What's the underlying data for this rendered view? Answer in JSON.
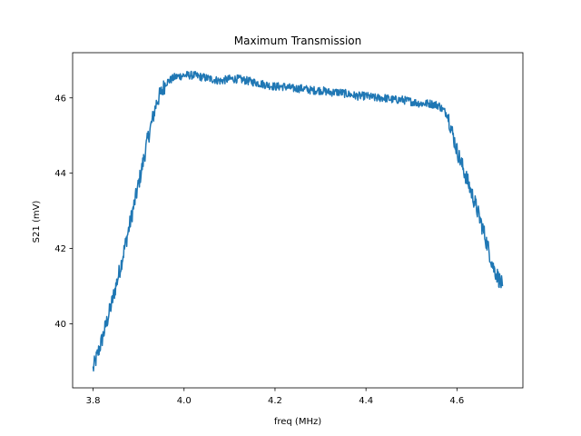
{
  "chart_data": {
    "type": "line",
    "title": "Maximum Transmission",
    "xlabel": "freq (MHz)",
    "ylabel": "S21 (mV)",
    "xlim": [
      3.755,
      4.745
    ],
    "ylim": [
      38.3,
      47.2
    ],
    "xticks": [
      3.8,
      4.0,
      4.2,
      4.4,
      4.6
    ],
    "xtick_labels": [
      "3.8",
      "4.0",
      "4.2",
      "4.4",
      "4.6"
    ],
    "yticks": [
      40,
      42,
      44,
      46
    ],
    "ytick_labels": [
      "40",
      "42",
      "44",
      "46"
    ],
    "grid": false,
    "legend": "none",
    "color": "#1f77b4",
    "series": [
      {
        "x": [
          3.8,
          3.82,
          3.84,
          3.86,
          3.88,
          3.9,
          3.92,
          3.94,
          3.96,
          3.98,
          4.0,
          4.02,
          4.04,
          4.06,
          4.08,
          4.1,
          4.12,
          4.14,
          4.16,
          4.18,
          4.2,
          4.22,
          4.24,
          4.26,
          4.28,
          4.3,
          4.32,
          4.34,
          4.36,
          4.38,
          4.4,
          4.42,
          4.44,
          4.46,
          4.48,
          4.5,
          4.52,
          4.54,
          4.56,
          4.58,
          4.6,
          4.62,
          4.64,
          4.66,
          4.68,
          4.7
        ],
        "y": [
          38.8,
          39.6,
          40.5,
          41.5,
          42.6,
          43.7,
          44.9,
          45.9,
          46.4,
          46.55,
          46.6,
          46.6,
          46.55,
          46.5,
          46.45,
          46.5,
          46.5,
          46.45,
          46.4,
          46.35,
          46.3,
          46.3,
          46.25,
          46.25,
          46.2,
          46.2,
          46.15,
          46.15,
          46.1,
          46.05,
          46.05,
          46.0,
          46.0,
          45.95,
          45.95,
          45.9,
          45.85,
          45.85,
          45.8,
          45.55,
          44.6,
          43.9,
          43.2,
          42.4,
          41.5,
          41.0
        ]
      }
    ]
  }
}
